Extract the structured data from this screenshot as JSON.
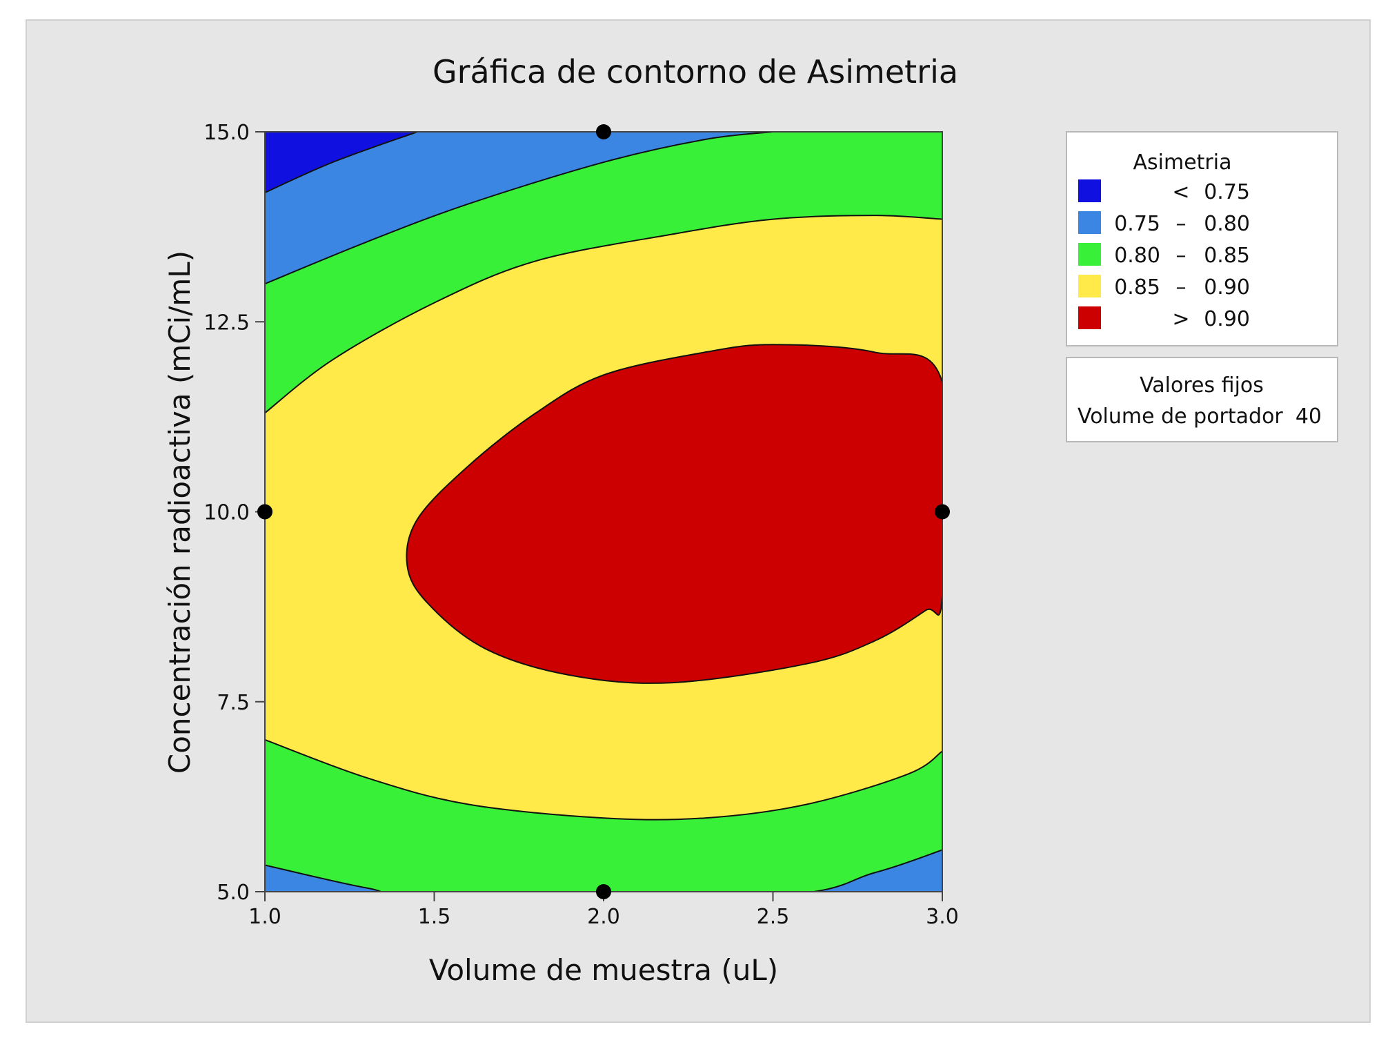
{
  "chart_data": {
    "type": "contour",
    "title": "Gráfica de contorno de Asimetria",
    "xlabel": "Volume de muestra (uL)",
    "ylabel": "Concentración radioactiva (mCi/mL)",
    "xlim": [
      1.0,
      3.0
    ],
    "ylim": [
      5.0,
      15.0
    ],
    "x_ticks": [
      "1.0",
      "1.5",
      "2.0",
      "2.5",
      "3.0"
    ],
    "x_tick_values": [
      1.0,
      1.5,
      2.0,
      2.5,
      3.0
    ],
    "y_ticks": [
      "5.0",
      "7.5",
      "10.0",
      "12.5",
      "15.0"
    ],
    "y_tick_values": [
      5.0,
      7.5,
      10.0,
      12.5,
      15.0
    ],
    "design_points": [
      {
        "x": 2.0,
        "y": 15.0
      },
      {
        "x": 1.0,
        "y": 10.0
      },
      {
        "x": 3.0,
        "y": 10.0
      },
      {
        "x": 2.0,
        "y": 5.0
      }
    ],
    "legend": {
      "title": "Asimetria",
      "placement": "right",
      "items": [
        {
          "low": "",
          "sep": "<",
          "high": "0.75",
          "color": "#1010e0"
        },
        {
          "low": "0.75",
          "sep": "–",
          "high": "0.80",
          "color": "#3b86e3"
        },
        {
          "low": "0.80",
          "sep": "–",
          "high": "0.85",
          "color": "#38f038"
        },
        {
          "low": "0.85",
          "sep": "–",
          "high": "0.90",
          "color": "#ffea4a"
        },
        {
          "low": "",
          "sep": ">",
          "high": "0.90",
          "color": "#cc0000"
        }
      ]
    },
    "fixed_values": {
      "title": "Valores fijos",
      "label": "Volume de portador",
      "value": "40"
    },
    "contour_levels": [
      0.75,
      0.8,
      0.85,
      0.9
    ],
    "boundaries": {
      "level_0_90": [
        [
          2.2,
          7.75
        ],
        [
          2.6,
          8.0
        ],
        [
          2.8,
          8.3
        ],
        [
          2.95,
          8.7
        ],
        [
          3.0,
          8.9
        ],
        [
          3.0,
          11.7
        ],
        [
          2.8,
          12.1
        ],
        [
          2.5,
          12.2
        ],
        [
          2.3,
          12.1
        ],
        [
          2.0,
          11.8
        ],
        [
          1.8,
          11.3
        ],
        [
          1.6,
          10.6
        ],
        [
          1.45,
          9.9
        ],
        [
          1.42,
          9.3
        ],
        [
          1.48,
          8.8
        ],
        [
          1.65,
          8.2
        ],
        [
          1.9,
          7.85
        ]
      ],
      "level_0_85_lower": [
        [
          1.0,
          7.0
        ],
        [
          1.3,
          6.5
        ],
        [
          1.6,
          6.15
        ],
        [
          2.0,
          5.97
        ],
        [
          2.3,
          5.97
        ],
        [
          2.6,
          6.15
        ],
        [
          2.9,
          6.55
        ],
        [
          3.0,
          6.85
        ]
      ],
      "level_0_85_upper": [
        [
          1.0,
          11.3
        ],
        [
          1.2,
          12.0
        ],
        [
          1.5,
          12.75
        ],
        [
          1.8,
          13.3
        ],
        [
          2.2,
          13.65
        ],
        [
          2.5,
          13.85
        ],
        [
          2.8,
          13.9
        ],
        [
          3.0,
          13.85
        ]
      ],
      "level_0_80_lower": [
        [
          1.0,
          5.35
        ],
        [
          1.3,
          5.05
        ],
        [
          1.5,
          4.95
        ],
        [
          2.5,
          4.95
        ],
        [
          2.8,
          5.25
        ],
        [
          3.0,
          5.55
        ]
      ],
      "level_0_80_upper": [
        [
          1.0,
          13.0
        ],
        [
          1.3,
          13.55
        ],
        [
          1.6,
          14.05
        ],
        [
          2.0,
          14.6
        ],
        [
          2.3,
          14.9
        ],
        [
          2.5,
          15.0
        ]
      ],
      "level_0_75_upper": [
        [
          1.0,
          14.2
        ],
        [
          1.2,
          14.6
        ],
        [
          1.45,
          15.0
        ]
      ]
    }
  }
}
